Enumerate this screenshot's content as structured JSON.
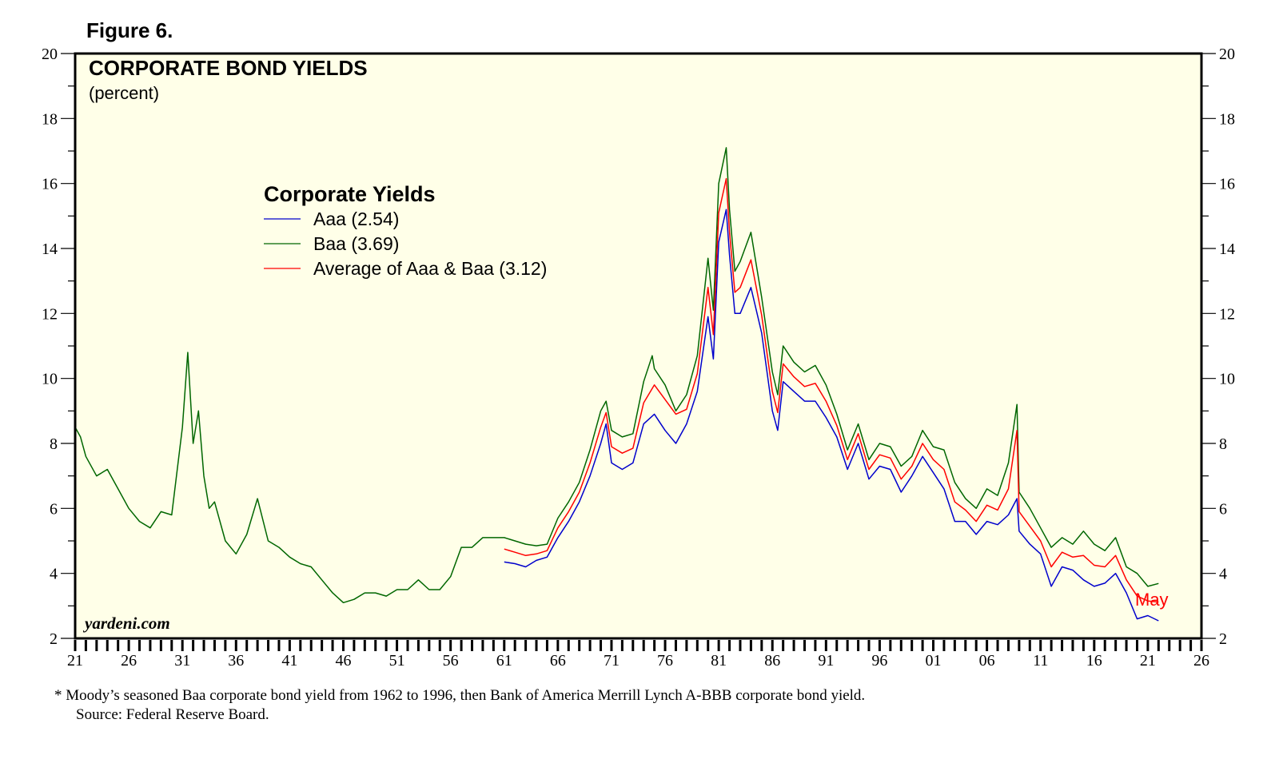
{
  "figure_label": "Figure 6.",
  "chart_data": {
    "type": "line",
    "title": "CORPORATE BOND YIELDS",
    "subtitle": "(percent)",
    "legend_title": "Corporate Yields",
    "legend_placement": "top-left",
    "ylim": [
      2,
      20
    ],
    "y_ticks": [
      2,
      4,
      6,
      8,
      10,
      12,
      14,
      16,
      18,
      20
    ],
    "x_range": [
      1921,
      2026
    ],
    "x_tick_labels": [
      "21",
      "26",
      "31",
      "36",
      "41",
      "46",
      "51",
      "56",
      "61",
      "66",
      "71",
      "76",
      "81",
      "86",
      "91",
      "96",
      "01",
      "06",
      "11",
      "16",
      "21",
      "26"
    ],
    "x_tick_years": [
      1921,
      1926,
      1931,
      1936,
      1941,
      1946,
      1951,
      1956,
      1961,
      1966,
      1971,
      1976,
      1981,
      1986,
      1991,
      1996,
      2001,
      2006,
      2011,
      2016,
      2021,
      2026
    ],
    "end_label": "May",
    "watermark": "yardeni.com",
    "series": [
      {
        "name": "Aaa (2.54)",
        "color": "#0000cc",
        "x": [
          1961,
          1962,
          1963,
          1964,
          1965,
          1966,
          1967,
          1968,
          1969,
          1970,
          1970.5,
          1971,
          1972,
          1973,
          1974,
          1975,
          1976,
          1977,
          1978,
          1979,
          1980,
          1980.5,
          1981,
          1981.7,
          1982,
          1982.5,
          1983,
          1984,
          1985,
          1986,
          1986.5,
          1987,
          1988,
          1989,
          1990,
          1991,
          1992,
          1993,
          1994,
          1995,
          1996,
          1997,
          1998,
          1999,
          2000,
          2001,
          2002,
          2003,
          2004,
          2005,
          2006,
          2007,
          2008,
          2008.8,
          2009,
          2010,
          2011,
          2012,
          2013,
          2014,
          2015,
          2016,
          2017,
          2018,
          2019,
          2020,
          2021,
          2022
        ],
        "y": [
          4.35,
          4.3,
          4.2,
          4.4,
          4.5,
          5.1,
          5.6,
          6.2,
          7.0,
          8.0,
          8.6,
          7.4,
          7.2,
          7.4,
          8.6,
          8.9,
          8.4,
          8.0,
          8.6,
          9.6,
          11.9,
          10.6,
          14.2,
          15.2,
          13.8,
          12.0,
          12.0,
          12.8,
          11.4,
          9.0,
          8.4,
          9.9,
          9.6,
          9.3,
          9.3,
          8.8,
          8.2,
          7.2,
          8.0,
          6.9,
          7.3,
          7.2,
          6.5,
          7.0,
          7.6,
          7.1,
          6.6,
          5.6,
          5.6,
          5.2,
          5.6,
          5.5,
          5.8,
          6.3,
          5.3,
          4.9,
          4.6,
          3.6,
          4.2,
          4.1,
          3.8,
          3.6,
          3.7,
          4.0,
          3.4,
          2.6,
          2.7,
          2.54
        ]
      },
      {
        "name": "Baa (3.69)",
        "color": "#006600",
        "x": [
          1921,
          1921.5,
          1922,
          1923,
          1924,
          1925,
          1926,
          1927,
          1928,
          1929,
          1930,
          1931,
          1931.5,
          1932,
          1932.5,
          1933,
          1933.5,
          1934,
          1935,
          1936,
          1937,
          1938,
          1939,
          1940,
          1941,
          1942,
          1943,
          1944,
          1945,
          1946,
          1947,
          1948,
          1949,
          1950,
          1951,
          1952,
          1953,
          1954,
          1955,
          1956,
          1957,
          1958,
          1959,
          1960,
          1961,
          1962,
          1963,
          1964,
          1965,
          1966,
          1967,
          1968,
          1969,
          1970,
          1970.5,
          1971,
          1972,
          1973,
          1974,
          1974.8,
          1975,
          1976,
          1977,
          1978,
          1979,
          1980,
          1980.5,
          1981,
          1981.7,
          1982,
          1982.5,
          1983,
          1984,
          1985,
          1986,
          1986.5,
          1987,
          1988,
          1989,
          1990,
          1991,
          1992,
          1993,
          1994,
          1995,
          1996,
          1997,
          1998,
          1999,
          2000,
          2001,
          2002,
          2003,
          2004,
          2005,
          2006,
          2007,
          2008,
          2008.8,
          2009,
          2010,
          2011,
          2012,
          2013,
          2014,
          2015,
          2016,
          2017,
          2018,
          2019,
          2020,
          2021,
          2022
        ],
        "y": [
          8.5,
          8.2,
          7.6,
          7.0,
          7.2,
          6.6,
          6.0,
          5.6,
          5.4,
          5.9,
          5.8,
          8.5,
          10.8,
          8.0,
          9.0,
          7.0,
          6.0,
          6.2,
          5.0,
          4.6,
          5.2,
          6.3,
          5.0,
          4.8,
          4.5,
          4.3,
          4.2,
          3.8,
          3.4,
          3.1,
          3.2,
          3.4,
          3.4,
          3.3,
          3.5,
          3.5,
          3.8,
          3.5,
          3.5,
          3.9,
          4.8,
          4.8,
          5.1,
          5.1,
          5.1,
          5.0,
          4.9,
          4.85,
          4.9,
          5.7,
          6.2,
          6.8,
          7.8,
          9.0,
          9.3,
          8.4,
          8.2,
          8.3,
          9.9,
          10.7,
          10.3,
          9.8,
          9.0,
          9.5,
          10.7,
          13.7,
          12.1,
          16.0,
          17.1,
          15.2,
          13.3,
          13.6,
          14.5,
          12.5,
          10.2,
          9.5,
          11.0,
          10.5,
          10.2,
          10.4,
          9.8,
          8.9,
          7.8,
          8.6,
          7.5,
          8.0,
          7.9,
          7.3,
          7.6,
          8.4,
          7.9,
          7.8,
          6.8,
          6.3,
          6.0,
          6.6,
          6.4,
          7.4,
          9.2,
          6.5,
          6.0,
          5.4,
          4.8,
          5.1,
          4.9,
          5.3,
          4.9,
          4.7,
          5.1,
          4.2,
          4.0,
          3.6,
          3.69
        ]
      },
      {
        "name": "Average of Aaa & Baa (3.12)",
        "color": "#ff0000",
        "x": [
          1961,
          1962,
          1963,
          1964,
          1965,
          1966,
          1967,
          1968,
          1969,
          1970,
          1970.5,
          1971,
          1972,
          1973,
          1974,
          1975,
          1976,
          1977,
          1978,
          1979,
          1980,
          1980.5,
          1981,
          1981.7,
          1982,
          1982.5,
          1983,
          1984,
          1985,
          1986,
          1986.5,
          1987,
          1988,
          1989,
          1990,
          1991,
          1992,
          1993,
          1994,
          1995,
          1996,
          1997,
          1998,
          1999,
          2000,
          2001,
          2002,
          2003,
          2004,
          2005,
          2006,
          2007,
          2008,
          2008.8,
          2009,
          2010,
          2011,
          2012,
          2013,
          2014,
          2015,
          2016,
          2017,
          2018,
          2019,
          2020,
          2021,
          2022
        ],
        "y": [
          4.75,
          4.65,
          4.55,
          4.6,
          4.7,
          5.4,
          5.9,
          6.5,
          7.4,
          8.5,
          8.95,
          7.9,
          7.7,
          7.85,
          9.25,
          9.8,
          9.35,
          8.9,
          9.05,
          10.15,
          12.8,
          11.35,
          15.1,
          16.15,
          14.5,
          12.65,
          12.8,
          13.65,
          11.95,
          9.6,
          8.95,
          10.45,
          10.05,
          9.75,
          9.85,
          9.3,
          8.55,
          7.5,
          8.3,
          7.2,
          7.65,
          7.55,
          6.9,
          7.3,
          8.0,
          7.5,
          7.2,
          6.2,
          5.95,
          5.6,
          6.1,
          5.95,
          6.6,
          8.4,
          5.9,
          5.45,
          5.0,
          4.2,
          4.65,
          4.5,
          4.55,
          4.25,
          4.2,
          4.55,
          3.8,
          3.3,
          3.15,
          3.12
        ]
      }
    ]
  },
  "footnote": {
    "line1": "*   Moody’s seasoned Baa corporate bond yield from 1962 to 1996, then Bank of America Merrill Lynch A-BBB corporate bond yield.",
    "line2": "Source: Federal Reserve Board."
  }
}
